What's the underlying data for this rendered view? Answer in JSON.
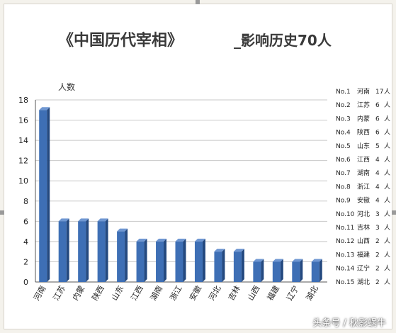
{
  "chart_data": {
    "type": "bar",
    "title_part1": "《中国历代宰相》",
    "title_part2": "_影响历史70人",
    "ylabel": "人数",
    "xlabel": "",
    "ylim": [
      0,
      18
    ],
    "yticks": [
      0,
      2,
      4,
      6,
      8,
      10,
      12,
      14,
      16,
      18
    ],
    "grid": true,
    "categories": [
      "河南",
      "江苏",
      "内蒙",
      "陕西",
      "山东",
      "江西",
      "湖南",
      "浙江",
      "安徽",
      "河北",
      "吉林",
      "山西",
      "福建",
      "辽宁",
      "湖北"
    ],
    "values": [
      17,
      6,
      6,
      6,
      5,
      4,
      4,
      4,
      4,
      3,
      3,
      2,
      2,
      2,
      2
    ],
    "colors": {
      "bar": "#3e6fb5",
      "bar_dark": "#24497f",
      "bar_light": "#6f97d2"
    },
    "ranking": [
      {
        "no": "No.1",
        "province": "河南",
        "count": "17",
        "unit": "人"
      },
      {
        "no": "No.2",
        "province": "江苏",
        "count": "6",
        "unit": "人"
      },
      {
        "no": "No.3",
        "province": "内蒙",
        "count": "6",
        "unit": "人"
      },
      {
        "no": "No.4",
        "province": "陕西",
        "count": "6",
        "unit": "人"
      },
      {
        "no": "No.5",
        "province": "山东",
        "count": "5",
        "unit": "人"
      },
      {
        "no": "No.6",
        "province": "江西",
        "count": "4",
        "unit": "人"
      },
      {
        "no": "No.7",
        "province": "湖南",
        "count": "4",
        "unit": "人"
      },
      {
        "no": "No.8",
        "province": "浙江",
        "count": "4",
        "unit": "人"
      },
      {
        "no": "No.9",
        "province": "安徽",
        "count": "4",
        "unit": "人"
      },
      {
        "no": "No.10",
        "province": "河北",
        "count": "3",
        "unit": "人"
      },
      {
        "no": "No.11",
        "province": "吉林",
        "count": "3",
        "unit": "人"
      },
      {
        "no": "No.12",
        "province": "山西",
        "count": "2",
        "unit": "人"
      },
      {
        "no": "No.13",
        "province": "福建",
        "count": "2",
        "unit": "人"
      },
      {
        "no": "No.14",
        "province": "辽宁",
        "count": "2",
        "unit": "人"
      },
      {
        "no": "No.15",
        "province": "湖北",
        "count": "2",
        "unit": "人"
      }
    ]
  },
  "watermark": "头条号 / 秋影蜗牛"
}
